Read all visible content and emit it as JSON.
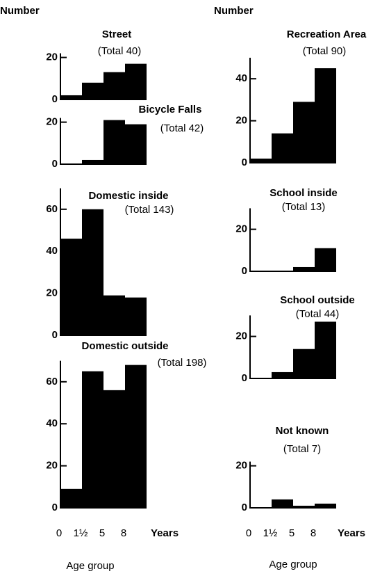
{
  "chart_data": [
    {
      "type": "bar",
      "title": "Street",
      "subtitle": "(Total 40)",
      "values": [
        2,
        8,
        13,
        17
      ],
      "ylim": [
        0,
        22
      ],
      "yticks": [
        0,
        20
      ],
      "color": "#000000"
    },
    {
      "type": "bar",
      "title": "Bicycle Falls",
      "subtitle": "(Total 42)",
      "values": [
        0,
        2,
        21,
        19
      ],
      "ylim": [
        0,
        22
      ],
      "yticks": [
        0,
        20
      ],
      "color": "#000000"
    },
    {
      "type": "bar",
      "title": "Domestic inside",
      "subtitle": "(Total 143)",
      "values": [
        46,
        60,
        19,
        18
      ],
      "ylim": [
        0,
        70
      ],
      "yticks": [
        0,
        20,
        40,
        60
      ],
      "color": "#000000"
    },
    {
      "type": "bar",
      "title": "Domestic outside",
      "subtitle": "(Total 198)",
      "values": [
        9,
        65,
        56,
        68
      ],
      "ylim": [
        0,
        70
      ],
      "yticks": [
        0,
        20,
        40,
        60
      ],
      "color": "#000000"
    },
    {
      "type": "bar",
      "title": "Recreation Area",
      "subtitle": "(Total 90)",
      "values": [
        2,
        14,
        29,
        45
      ],
      "ylim": [
        0,
        50
      ],
      "yticks": [
        0,
        20,
        40
      ],
      "color": "#000000"
    },
    {
      "type": "bar",
      "title": "School inside",
      "subtitle": "(Total 13)",
      "values": [
        0,
        0,
        2,
        11
      ],
      "ylim": [
        0,
        30
      ],
      "yticks": [
        0,
        20
      ],
      "color": "#000000"
    },
    {
      "type": "bar",
      "title": "School outside",
      "subtitle": "(Total 44)",
      "values": [
        0,
        3,
        14,
        27
      ],
      "ylim": [
        0,
        30
      ],
      "yticks": [
        0,
        20
      ],
      "color": "#000000"
    },
    {
      "type": "bar",
      "title": "Not known",
      "subtitle": "(Total 7)",
      "values": [
        0,
        4,
        1,
        2
      ],
      "ylim": [
        0,
        22
      ],
      "yticks": [
        0,
        20
      ],
      "color": "#000000"
    }
  ],
  "columns": [
    {
      "ylabel": "Number",
      "x_tick_labels": [
        "0",
        "1½",
        "5",
        "8"
      ],
      "x_unit": "Years",
      "xlabel": "Age group"
    },
    {
      "ylabel": "Number",
      "x_tick_labels": [
        "0",
        "1½",
        "5",
        "8"
      ],
      "x_unit": "Years",
      "xlabel": "Age group"
    }
  ]
}
